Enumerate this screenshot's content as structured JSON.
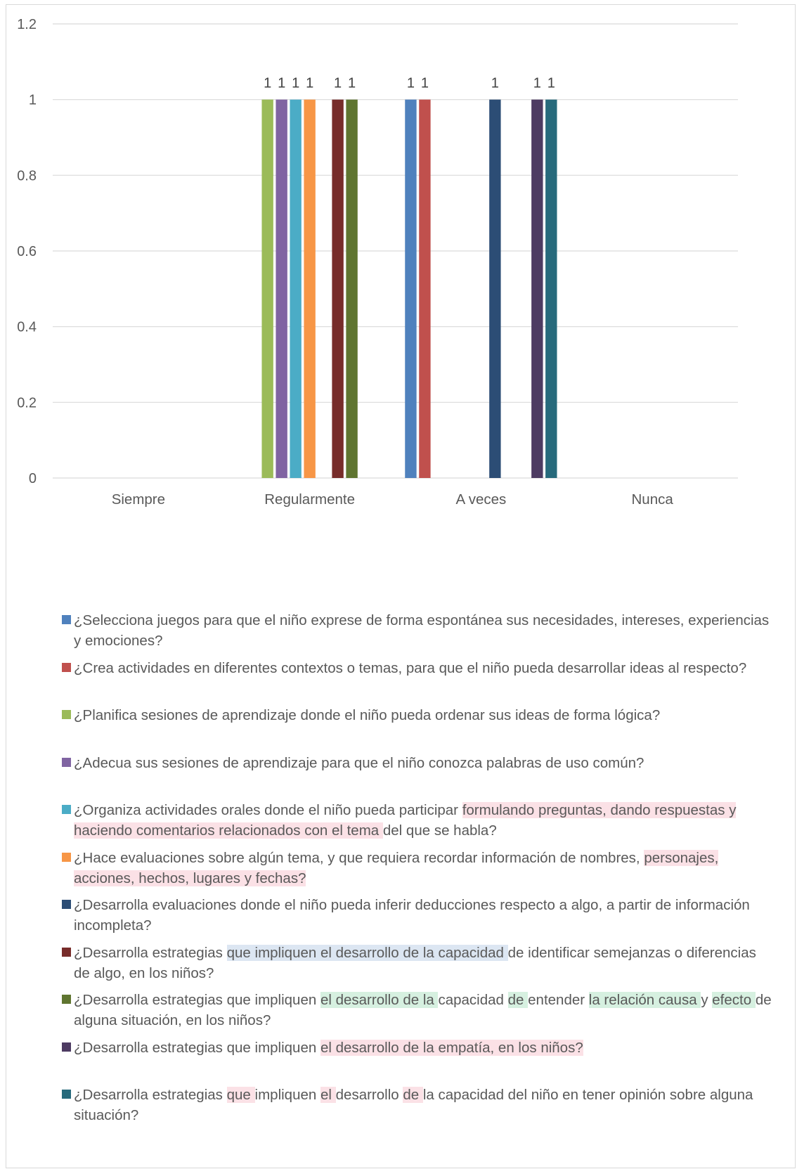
{
  "chart_data": {
    "type": "bar",
    "categories": [
      "Siempre",
      "Regularmente",
      "A veces",
      "Nunca"
    ],
    "ylim": [
      0,
      1.2
    ],
    "yticks": [
      "0",
      "0.2",
      "0.4",
      "0.6",
      "0.8",
      "1",
      "1.2"
    ],
    "grid": true,
    "legend_position": "bottom",
    "data_labels": true,
    "series": [
      {
        "name": "¿Selecciona juegos para que el niño exprese de forma espontánea sus necesidades, intereses, experiencias y emociones?",
        "color": "#4f81bd",
        "values": [
          null,
          null,
          1,
          null
        ]
      },
      {
        "name": "¿Crea actividades en diferentes contextos o temas, para que el niño pueda desarrollar ideas al respecto?",
        "color": "#c0504d",
        "values": [
          null,
          null,
          1,
          null
        ]
      },
      {
        "name": "¿Planifica sesiones de aprendizaje donde el niño pueda ordenar sus ideas de forma lógica?",
        "color": "#9bbb59",
        "values": [
          null,
          1,
          null,
          null
        ]
      },
      {
        "name": "¿Adecua sus sesiones de aprendizaje para que el niño conozca palabras de uso común?",
        "color": "#8064a2",
        "values": [
          null,
          1,
          null,
          null
        ]
      },
      {
        "name": "¿Organiza actividades orales donde el niño pueda participar formulando preguntas, dando respuestas y haciendo comentarios relacionados con el tema del que se habla?",
        "color": "#4bacc6",
        "values": [
          null,
          1,
          null,
          null
        ]
      },
      {
        "name": "¿Hace evaluaciones sobre algún tema, y que requiera recordar información de nombres, personajes, acciones, hechos, lugares y fechas?",
        "color": "#f79646",
        "values": [
          null,
          1,
          null,
          null
        ]
      },
      {
        "name": "¿Desarrolla evaluaciones donde el niño pueda inferir deducciones respecto a algo, a partir de información incompleta?",
        "color": "#2c4d75",
        "values": [
          null,
          null,
          1,
          null
        ]
      },
      {
        "name": "¿Desarrolla estrategias que impliquen el desarrollo de la capacidad de identificar semejanzas o diferencias de algo, en los niños?",
        "color": "#772c2a",
        "values": [
          null,
          1,
          null,
          null
        ]
      },
      {
        "name": "¿Desarrolla estrategias que impliquen el desarrollo de la capacidad de entender la relación causa y efecto de alguna situación, en los niños?",
        "color": "#5f7530",
        "values": [
          null,
          1,
          null,
          null
        ]
      },
      {
        "name": "¿Desarrolla estrategias que impliquen el desarrollo de la empatía, en los niños?",
        "color": "#4d3b62",
        "values": [
          null,
          null,
          1,
          null
        ]
      },
      {
        "name": "¿Desarrolla estrategias que impliquen el desarrollo de la capacidad del niño en tener opinión sobre alguna situación?",
        "color": "#276a7c",
        "values": [
          null,
          null,
          1,
          null
        ]
      }
    ]
  },
  "legend": {
    "highlight_colors": {
      "pink": "#fbe1e6",
      "blue": "#dce6f2",
      "green": "#d6f0e0"
    },
    "items": [
      {
        "segments": [
          {
            "text": "¿Selecciona juegos para que el niño exprese de forma espontánea sus necesidades, intereses, experiencias y emociones?",
            "hl": ""
          }
        ]
      },
      {
        "segments": [
          {
            "text": "¿Crea actividades en diferentes contextos o temas, para que el niño pueda desarrollar ideas al respecto?",
            "hl": ""
          }
        ]
      },
      {
        "segments": [
          {
            "text": "¿Planifica sesiones de aprendizaje donde el niño pueda ordenar sus ideas de forma lógica?",
            "hl": ""
          }
        ]
      },
      {
        "segments": [
          {
            "text": "¿Adecua sus sesiones de aprendizaje para que el niño conozca palabras de uso común?",
            "hl": ""
          }
        ]
      },
      {
        "segments": [
          {
            "text": "¿Organiza actividades orales donde el niño pueda participar ",
            "hl": ""
          },
          {
            "text": "formulando preguntas, dando respuestas y haciendo comentarios relacionados con el tema ",
            "hl": "pink"
          },
          {
            "text": "del que se habla?",
            "hl": ""
          }
        ]
      },
      {
        "segments": [
          {
            "text": "¿Hace evaluaciones sobre algún tema, y que requiera recordar información de nombres, ",
            "hl": ""
          },
          {
            "text": "personajes, acciones, hechos, lugares y fechas?",
            "hl": "pink"
          }
        ]
      },
      {
        "segments": [
          {
            "text": "¿Desarrolla evaluaciones donde el niño pueda inferir deducciones respecto a algo, a partir de información incompleta?",
            "hl": ""
          }
        ]
      },
      {
        "segments": [
          {
            "text": "¿Desarrolla estrategias ",
            "hl": ""
          },
          {
            "text": "que impliquen el desarrollo de la capacidad ",
            "hl": "blue"
          },
          {
            "text": "de identificar semejanzas o diferencias de algo, en los niños?",
            "hl": ""
          }
        ]
      },
      {
        "segments": [
          {
            "text": "¿Desarrolla estrategias que impliquen ",
            "hl": ""
          },
          {
            "text": "el desarrollo de la ",
            "hl": "green"
          },
          {
            "text": "capacidad ",
            "hl": ""
          },
          {
            "text": "de ",
            "hl": "green"
          },
          {
            "text": "entender ",
            "hl": ""
          },
          {
            "text": "la relación causa ",
            "hl": "green"
          },
          {
            "text": "y ",
            "hl": ""
          },
          {
            "text": "efecto ",
            "hl": "green"
          },
          {
            "text": "de alguna situación, en los niños?",
            "hl": ""
          }
        ]
      },
      {
        "segments": [
          {
            "text": "¿Desarrolla estrategias que impliquen ",
            "hl": ""
          },
          {
            "text": "el desarrollo de la empatía, en los niños?",
            "hl": "pink"
          }
        ]
      },
      {
        "segments": [
          {
            "text": "¿Desarrolla estrategias ",
            "hl": ""
          },
          {
            "text": "que ",
            "hl": "pink"
          },
          {
            "text": "impliquen ",
            "hl": ""
          },
          {
            "text": "el ",
            "hl": "pink"
          },
          {
            "text": "desarrollo ",
            "hl": ""
          },
          {
            "text": "de ",
            "hl": "pink"
          },
          {
            "text": "la capacidad del niño en tener opinión sobre alguna situación?",
            "hl": ""
          }
        ]
      }
    ]
  }
}
